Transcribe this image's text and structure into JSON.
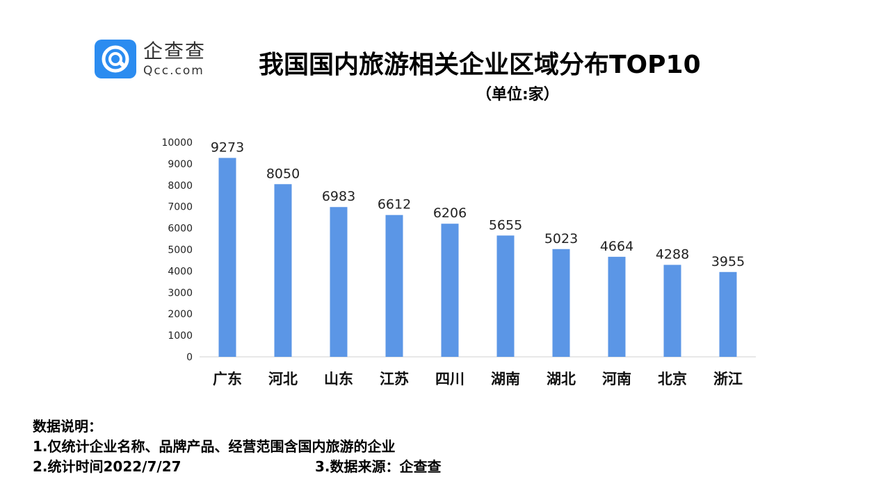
{
  "brand": {
    "name_cn": "企查查",
    "name_en": "Qcc.com",
    "color": "#2b8cf0"
  },
  "header": {
    "title": "我国国内旅游相关企业区域分布TOP10",
    "subtitle": "（单位:家）"
  },
  "chart_data": {
    "type": "bar",
    "categories": [
      "广东",
      "河北",
      "山东",
      "江苏",
      "四川",
      "湖南",
      "湖北",
      "河南",
      "北京",
      "浙江"
    ],
    "values": [
      9273,
      8050,
      6983,
      6612,
      6206,
      5655,
      5023,
      4664,
      4288,
      3955
    ],
    "y_ticks": [
      "0",
      "1000",
      "2000",
      "3000",
      "4000",
      "5000",
      "6000",
      "7000",
      "8000",
      "9000",
      "10000"
    ],
    "ylim": [
      0,
      10000
    ],
    "bar_color": "#5b96e6",
    "grid": false,
    "data_labels": true
  },
  "notes": {
    "heading": "数据说明：",
    "line1": "1.仅统计企业名称、品牌产品、经营范围含国内旅游的企业",
    "line2": "2.统计时间2022/7/27",
    "line3": "3.数据来源：企查查"
  }
}
